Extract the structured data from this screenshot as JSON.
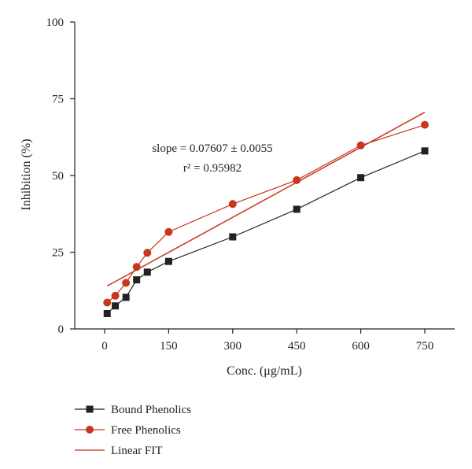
{
  "chart_data": {
    "type": "line",
    "title": "",
    "xlabel": "Conc. (μg/mL)",
    "ylabel": "Inhibition (%)",
    "xlim": [
      -70,
      820
    ],
    "ylim": [
      0,
      100
    ],
    "x_ticks": [
      0,
      150,
      300,
      450,
      600,
      750
    ],
    "x_tick_labels": [
      "0",
      "150",
      "300",
      "450",
      "600",
      "750"
    ],
    "y_ticks": [
      0,
      25,
      50,
      75,
      100
    ],
    "y_tick_labels": [
      "0",
      "25",
      "50",
      "75",
      "100"
    ],
    "grid": false,
    "legend_position": "bottom-left",
    "series": [
      {
        "name": "Bound Phenolics",
        "marker": "square",
        "color": "#222222",
        "x": [
          6,
          25,
          50,
          75,
          100,
          150,
          300,
          450,
          600,
          750
        ],
        "y": [
          5,
          7.5,
          10.3,
          16,
          18.5,
          22,
          30,
          39,
          49.3,
          58
        ]
      },
      {
        "name": "Free Phenolics",
        "marker": "circle",
        "color": "#c8361b",
        "x": [
          6,
          25,
          50,
          75,
          100,
          150,
          300,
          450,
          600,
          750
        ],
        "y": [
          8.6,
          10.8,
          15,
          20.2,
          24.8,
          31.6,
          40.7,
          48.5,
          59.8,
          66.5
        ]
      },
      {
        "name": "Linear FIT",
        "marker": "none",
        "color": "#c8361b",
        "x": [
          6,
          750
        ],
        "y": [
          14,
          70.6
        ]
      }
    ],
    "annotations": [
      "slope = 0.07607 ± 0.0055",
      "r² = 0.95982"
    ]
  }
}
